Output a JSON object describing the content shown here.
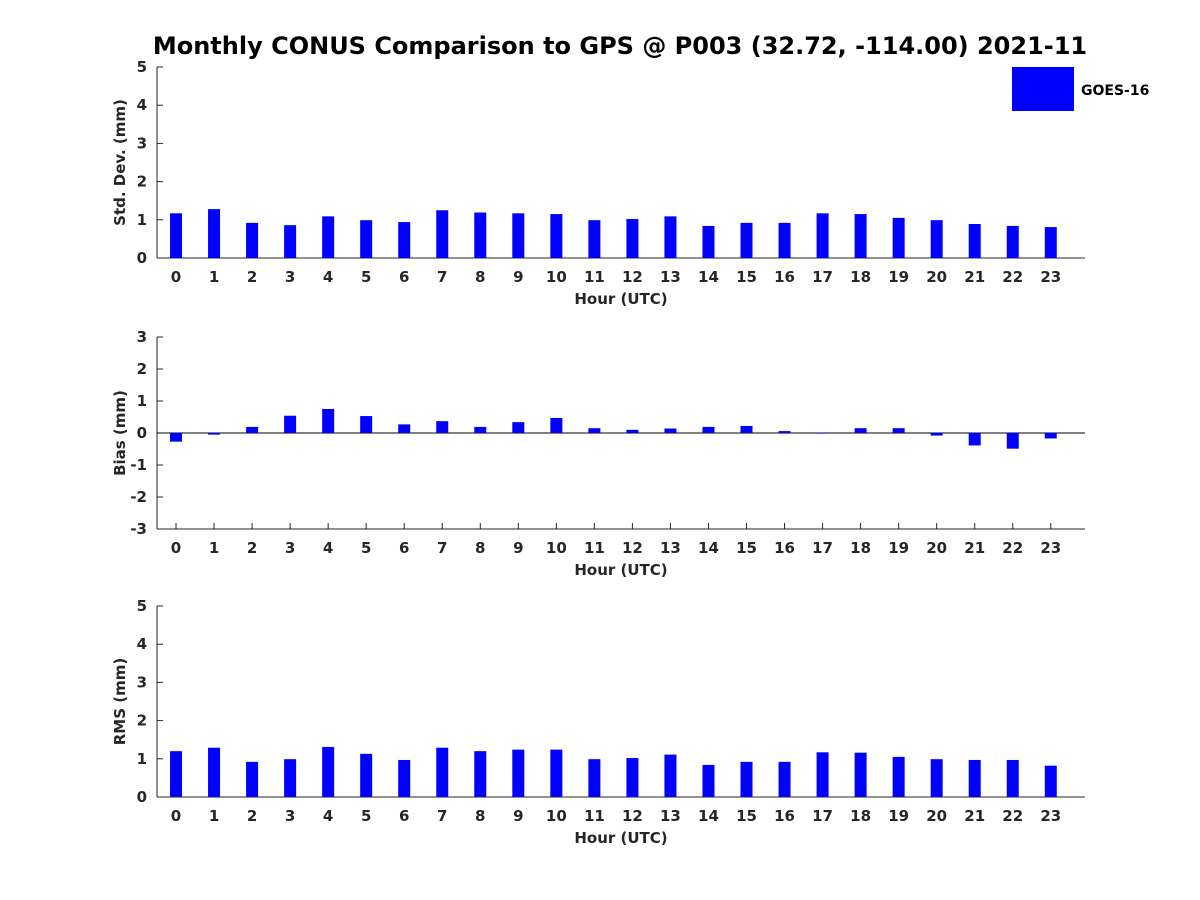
{
  "figure": {
    "title": "Monthly CONUS Comparison to GPS @ P003 (32.72, -114.00) 2021-11"
  },
  "colors": {
    "bar": "#0000ff",
    "axis": "#262626"
  },
  "chart_data": [
    {
      "type": "bar",
      "ylabel": "Std. Dev. (mm)",
      "xlabel": "Hour (UTC)",
      "ylim": [
        0,
        5
      ],
      "yticks": [
        0,
        1,
        2,
        3,
        4,
        5
      ],
      "categories": [
        "0",
        "1",
        "2",
        "3",
        "4",
        "5",
        "6",
        "7",
        "8",
        "9",
        "10",
        "11",
        "12",
        "13",
        "14",
        "15",
        "16",
        "17",
        "18",
        "19",
        "20",
        "21",
        "22",
        "23"
      ],
      "series": [
        {
          "name": "GOES-16",
          "values": [
            1.17,
            1.28,
            0.92,
            0.86,
            1.09,
            0.99,
            0.94,
            1.25,
            1.19,
            1.17,
            1.15,
            0.99,
            1.02,
            1.09,
            0.84,
            0.92,
            0.92,
            1.17,
            1.15,
            1.05,
            0.99,
            0.89,
            0.84,
            0.81
          ]
        }
      ],
      "legend": {
        "entries": [
          "GOES-16"
        ],
        "placement": "top-right"
      }
    },
    {
      "type": "bar",
      "ylabel": "Bias (mm)",
      "xlabel": "Hour (UTC)",
      "ylim": [
        -3,
        3
      ],
      "yticks": [
        -3,
        -2,
        -1,
        0,
        1,
        2,
        3
      ],
      "categories": [
        "0",
        "1",
        "2",
        "3",
        "4",
        "5",
        "6",
        "7",
        "8",
        "9",
        "10",
        "11",
        "12",
        "13",
        "14",
        "15",
        "16",
        "17",
        "18",
        "19",
        "20",
        "21",
        "22",
        "23"
      ],
      "series": [
        {
          "name": "GOES-16",
          "values": [
            -0.27,
            -0.05,
            0.19,
            0.54,
            0.75,
            0.53,
            0.27,
            0.37,
            0.19,
            0.34,
            0.47,
            0.15,
            0.1,
            0.14,
            0.19,
            0.22,
            0.06,
            -0.01,
            0.15,
            0.15,
            -0.08,
            -0.39,
            -0.49,
            -0.17
          ]
        }
      ]
    },
    {
      "type": "bar",
      "ylabel": "RMS (mm)",
      "xlabel": "Hour (UTC)",
      "ylim": [
        0,
        5
      ],
      "yticks": [
        0,
        1,
        2,
        3,
        4,
        5
      ],
      "categories": [
        "0",
        "1",
        "2",
        "3",
        "4",
        "5",
        "6",
        "7",
        "8",
        "9",
        "10",
        "11",
        "12",
        "13",
        "14",
        "15",
        "16",
        "17",
        "18",
        "19",
        "20",
        "21",
        "22",
        "23"
      ],
      "series": [
        {
          "name": "GOES-16",
          "values": [
            1.2,
            1.29,
            0.92,
            0.99,
            1.31,
            1.13,
            0.97,
            1.29,
            1.2,
            1.24,
            1.24,
            0.99,
            1.02,
            1.11,
            0.84,
            0.92,
            0.92,
            1.17,
            1.16,
            1.05,
            0.99,
            0.97,
            0.97,
            0.82
          ]
        }
      ]
    }
  ]
}
